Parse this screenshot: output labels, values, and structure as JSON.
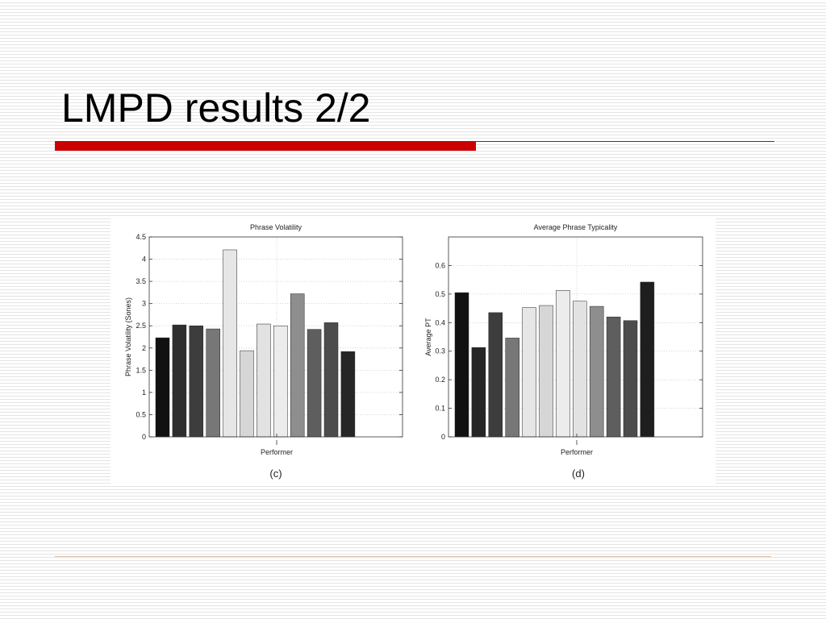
{
  "slide": {
    "title": "LMPD results 2/2"
  },
  "colors": {
    "accent": "#cc0000",
    "footer_rule": "#e0c0a8"
  },
  "chart_data": [
    {
      "type": "bar",
      "title": "Phrase Volatility",
      "xlabel": "Performer",
      "ylabel": "Phrase Volatility (Sones)",
      "caption": "(c)",
      "ylim": [
        0,
        4.5
      ],
      "yticks": [
        0,
        0.5,
        1,
        1.5,
        2,
        2.5,
        3,
        3.5,
        4,
        4.5
      ],
      "grid": true,
      "values": [
        2.23,
        2.52,
        2.5,
        2.43,
        4.21,
        1.94,
        2.54,
        2.5,
        3.22,
        2.42,
        2.57,
        1.92
      ],
      "bar_colors": [
        "#111111",
        "#2e2e2e",
        "#3d3d3d",
        "#777777",
        "#e6e6e6",
        "#d6d6d6",
        "#e2e2e2",
        "#ececec",
        "#8e8e8e",
        "#5e5e5e",
        "#4c4c4c",
        "#262626"
      ]
    },
    {
      "type": "bar",
      "title": "Average Phrase Typicality",
      "xlabel": "Performer",
      "ylabel": "Average PT",
      "caption": "(d)",
      "ylim": [
        0,
        0.7
      ],
      "yticks": [
        0,
        0.1,
        0.2,
        0.3,
        0.4,
        0.5,
        0.6
      ],
      "grid": true,
      "values": [
        0.505,
        0.313,
        0.435,
        0.346,
        0.453,
        0.46,
        0.513,
        0.475,
        0.457,
        0.42,
        0.407,
        0.542
      ],
      "bar_colors": [
        "#111111",
        "#262626",
        "#3d3d3d",
        "#777777",
        "#e6e6e6",
        "#d6d6d6",
        "#ececec",
        "#e2e2e2",
        "#8e8e8e",
        "#5e5e5e",
        "#4c4c4c",
        "#1e1e1e"
      ]
    }
  ]
}
